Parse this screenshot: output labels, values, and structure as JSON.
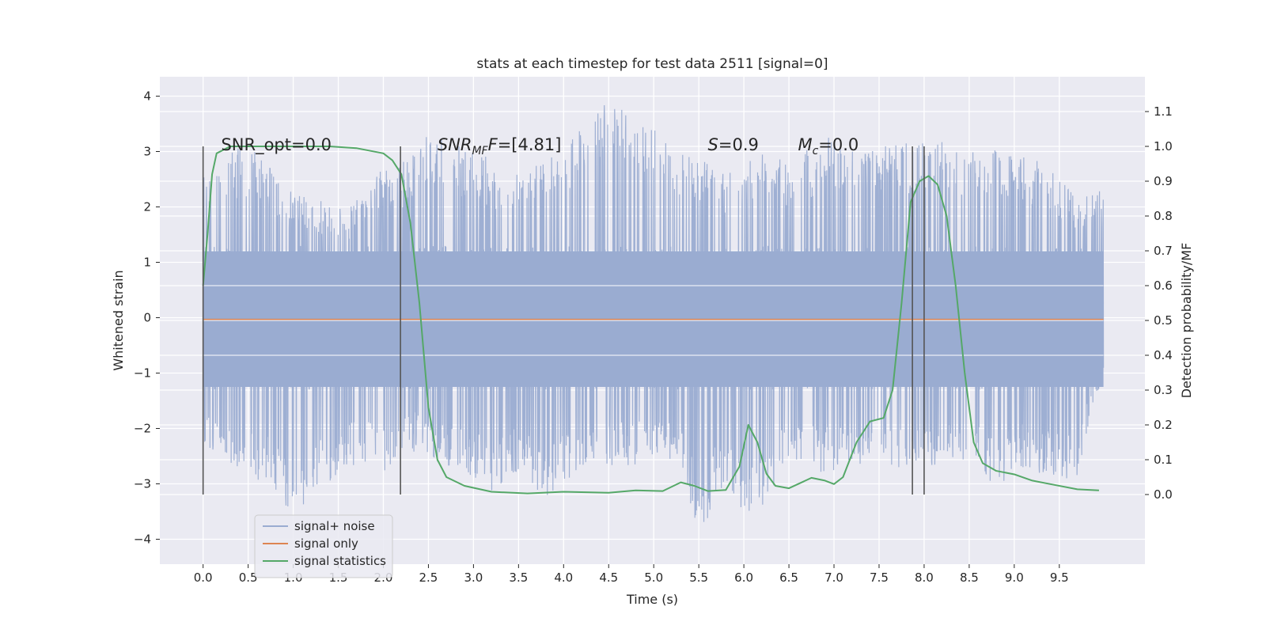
{
  "chart_data": {
    "type": "line",
    "title": "stats at each timestep for test data 2511 [signal=0]",
    "xlabel": "Time (s)",
    "ylabel": "Whitened strain",
    "ylabel_right": "Detection probability/MF",
    "xlim": [
      -0.48,
      10.45
    ],
    "ylim": [
      -4.45,
      4.35
    ],
    "ylim_right": [
      -0.2,
      1.2
    ],
    "x_ticks": [
      "0.0",
      "0.5",
      "1.0",
      "1.5",
      "2.0",
      "2.5",
      "3.0",
      "3.5",
      "4.0",
      "4.5",
      "5.0",
      "5.5",
      "6.0",
      "6.5",
      "7.0",
      "7.5",
      "8.0",
      "8.5",
      "9.0",
      "9.5"
    ],
    "y_ticks": [
      "4",
      "3",
      "2",
      "1",
      "0",
      "−1",
      "−2",
      "−3",
      "−4"
    ],
    "y_ticks_right": [
      "1.1",
      "1.0",
      "0.9",
      "0.8",
      "0.7",
      "0.6",
      "0.5",
      "0.4",
      "0.3",
      "0.2",
      "0.1",
      "0.0"
    ],
    "grid": true,
    "legend_position": "lower-left",
    "annotations": [
      {
        "text": "SNR_opt=0.0",
        "x": 0.2,
        "y_right": 1.0
      },
      {
        "text": "=[4.81]",
        "prefix_italic": "SNR",
        "subscript": "MF",
        "after_sub_italic": "F",
        "x": 2.6,
        "y_right": 1.0
      },
      {
        "text": "=0.9",
        "prefix_italic": "S",
        "x": 5.6,
        "y_right": 1.0
      },
      {
        "text": "=0.0",
        "prefix_italic": "M",
        "subscript": "c",
        "x": 6.6,
        "y_right": 1.0
      }
    ],
    "vertical_lines": [
      0.0,
      2.19,
      7.87,
      8.0
    ],
    "vline_range_right": [
      0.0,
      1.0
    ],
    "series": [
      {
        "name": "signal+ noise",
        "color": "#9aacd1",
        "x_range": [
          0.0,
          9.99
        ],
        "envelope_top": [
          [
            0.0,
            2.5
          ],
          [
            0.1,
            3.1
          ],
          [
            0.3,
            3.1
          ],
          [
            0.5,
            3.0
          ],
          [
            0.6,
            3.1
          ],
          [
            0.9,
            2.3
          ],
          [
            1.2,
            2.2
          ],
          [
            1.6,
            2.0
          ],
          [
            2.0,
            2.7
          ],
          [
            2.2,
            2.8
          ],
          [
            2.4,
            3.3
          ],
          [
            2.6,
            3.4
          ],
          [
            2.8,
            3.1
          ],
          [
            3.0,
            3.1
          ],
          [
            3.3,
            2.7
          ],
          [
            3.6,
            2.7
          ],
          [
            4.0,
            3.0
          ],
          [
            4.1,
            3.4
          ],
          [
            4.5,
            4.0
          ],
          [
            4.8,
            3.9
          ],
          [
            5.2,
            3.2
          ],
          [
            5.5,
            2.9
          ],
          [
            5.8,
            2.6
          ],
          [
            6.2,
            3.0
          ],
          [
            6.5,
            2.8
          ],
          [
            6.9,
            3.3
          ],
          [
            7.1,
            3.2
          ],
          [
            7.5,
            3.1
          ],
          [
            7.9,
            3.2
          ],
          [
            8.1,
            3.3
          ],
          [
            8.5,
            2.9
          ],
          [
            8.6,
            3.3
          ],
          [
            9.0,
            2.9
          ],
          [
            9.2,
            2.9
          ],
          [
            9.4,
            2.8
          ],
          [
            9.7,
            2.2
          ],
          [
            9.99,
            2.3
          ]
        ],
        "envelope_bottom": [
          [
            0.0,
            -2.4
          ],
          [
            0.2,
            -2.6
          ],
          [
            0.5,
            -2.9
          ],
          [
            0.7,
            -3.0
          ],
          [
            1.0,
            -3.6
          ],
          [
            1.2,
            -3.3
          ],
          [
            1.5,
            -2.8
          ],
          [
            1.8,
            -2.6
          ],
          [
            2.0,
            -2.8
          ],
          [
            2.3,
            -2.4
          ],
          [
            2.6,
            -2.6
          ],
          [
            3.0,
            -2.9
          ],
          [
            3.2,
            -3.2
          ],
          [
            3.5,
            -2.8
          ],
          [
            3.8,
            -3.3
          ],
          [
            4.2,
            -2.7
          ],
          [
            4.6,
            -2.7
          ],
          [
            5.0,
            -2.6
          ],
          [
            5.3,
            -2.7
          ],
          [
            5.5,
            -4.0
          ],
          [
            5.8,
            -2.9
          ],
          [
            6.0,
            -3.8
          ],
          [
            6.2,
            -3.4
          ],
          [
            6.5,
            -2.7
          ],
          [
            6.9,
            -2.8
          ],
          [
            7.2,
            -2.7
          ],
          [
            7.5,
            -2.5
          ],
          [
            7.8,
            -2.9
          ],
          [
            8.2,
            -2.6
          ],
          [
            8.5,
            -2.6
          ],
          [
            8.8,
            -3.1
          ],
          [
            9.1,
            -2.7
          ],
          [
            9.4,
            -2.9
          ],
          [
            9.7,
            -2.9
          ],
          [
            9.99,
            -1.0
          ]
        ]
      },
      {
        "name": "signal only",
        "color": "#dd8452",
        "points": [
          [
            0.0,
            -0.03
          ],
          [
            9.99,
            -0.03
          ]
        ]
      },
      {
        "name": "signal statistics",
        "color": "#55a868",
        "axis": "right",
        "points": [
          [
            0.0,
            0.6
          ],
          [
            0.05,
            0.75
          ],
          [
            0.1,
            0.92
          ],
          [
            0.15,
            0.98
          ],
          [
            0.3,
            1.0
          ],
          [
            0.6,
            1.0
          ],
          [
            1.0,
            1.0
          ],
          [
            1.4,
            1.0
          ],
          [
            1.7,
            0.995
          ],
          [
            2.0,
            0.98
          ],
          [
            2.1,
            0.96
          ],
          [
            2.2,
            0.92
          ],
          [
            2.3,
            0.78
          ],
          [
            2.4,
            0.55
          ],
          [
            2.5,
            0.25
          ],
          [
            2.6,
            0.1
          ],
          [
            2.7,
            0.05
          ],
          [
            2.9,
            0.025
          ],
          [
            3.2,
            0.008
          ],
          [
            3.6,
            0.003
          ],
          [
            4.0,
            0.008
          ],
          [
            4.5,
            0.005
          ],
          [
            4.8,
            0.012
          ],
          [
            5.1,
            0.01
          ],
          [
            5.3,
            0.035
          ],
          [
            5.45,
            0.025
          ],
          [
            5.6,
            0.01
          ],
          [
            5.8,
            0.013
          ],
          [
            5.95,
            0.08
          ],
          [
            6.05,
            0.2
          ],
          [
            6.15,
            0.15
          ],
          [
            6.25,
            0.06
          ],
          [
            6.35,
            0.025
          ],
          [
            6.5,
            0.018
          ],
          [
            6.6,
            0.03
          ],
          [
            6.75,
            0.048
          ],
          [
            6.9,
            0.04
          ],
          [
            7.0,
            0.03
          ],
          [
            7.1,
            0.05
          ],
          [
            7.25,
            0.15
          ],
          [
            7.4,
            0.21
          ],
          [
            7.55,
            0.22
          ],
          [
            7.65,
            0.3
          ],
          [
            7.75,
            0.55
          ],
          [
            7.85,
            0.84
          ],
          [
            7.95,
            0.9
          ],
          [
            8.05,
            0.915
          ],
          [
            8.15,
            0.89
          ],
          [
            8.25,
            0.8
          ],
          [
            8.35,
            0.6
          ],
          [
            8.45,
            0.35
          ],
          [
            8.55,
            0.15
          ],
          [
            8.65,
            0.09
          ],
          [
            8.8,
            0.068
          ],
          [
            9.0,
            0.058
          ],
          [
            9.2,
            0.04
          ],
          [
            9.4,
            0.03
          ],
          [
            9.7,
            0.015
          ],
          [
            9.94,
            0.012
          ]
        ]
      }
    ]
  }
}
